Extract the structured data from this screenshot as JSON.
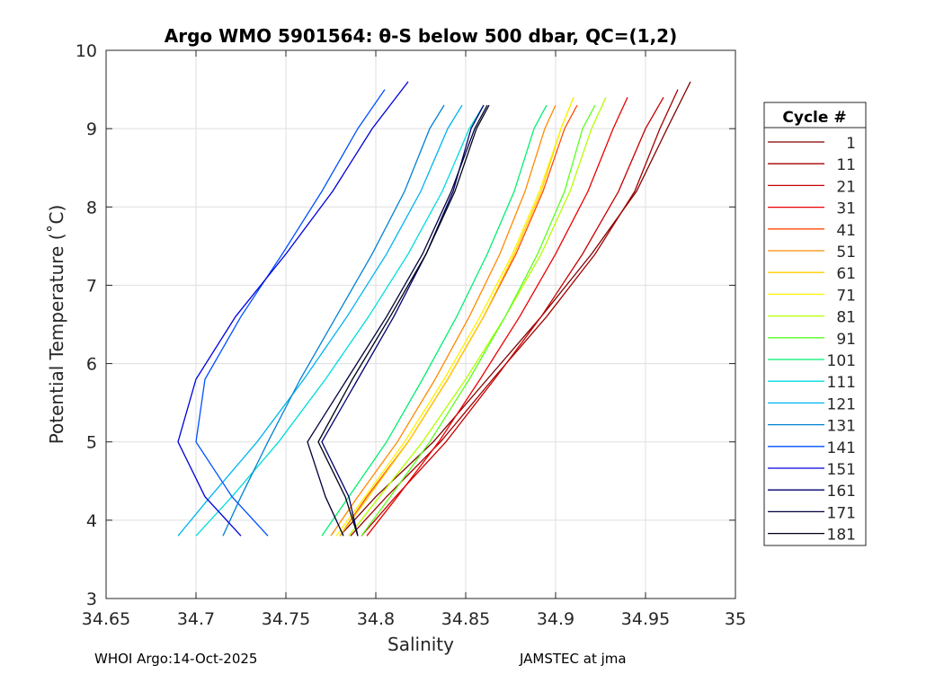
{
  "chart_data": {
    "type": "line",
    "title": "Argo WMO 5901564: θ-S below 500 dbar,  QC=(1,2)",
    "xlabel": "Salinity",
    "ylabel": "Potential Temperature (˚C)",
    "xlim": [
      34.65,
      35.0
    ],
    "ylim": [
      3,
      10
    ],
    "xticks": [
      34.65,
      34.7,
      34.75,
      34.8,
      34.85,
      34.9,
      34.95,
      35.0
    ],
    "xtick_labels": [
      "34.65",
      "34.7",
      "34.75",
      "34.8",
      "34.85",
      "34.9",
      "34.95",
      "35"
    ],
    "yticks": [
      3,
      4,
      5,
      6,
      7,
      8,
      9,
      10
    ],
    "ytick_labels": [
      "3",
      "4",
      "5",
      "6",
      "7",
      "8",
      "9",
      "10"
    ],
    "grid": true,
    "legend": {
      "title": "Cycle #",
      "placement": "outside-right",
      "entries": [
        "1",
        "11",
        "21",
        "31",
        "41",
        "51",
        "61",
        "71",
        "81",
        "91",
        "101",
        "111",
        "121",
        "131",
        "141",
        "151",
        "161",
        "171",
        "181"
      ]
    },
    "series": [
      {
        "name": "1",
        "color": "#800000",
        "S": [
          34.78,
          34.8,
          34.832,
          34.862,
          34.892,
          34.92,
          34.945,
          34.962,
          34.975
        ],
        "T": [
          3.8,
          4.3,
          5.0,
          5.8,
          6.6,
          7.4,
          8.2,
          9.0,
          9.6
        ]
      },
      {
        "name": "11",
        "color": "#A40000",
        "S": [
          34.786,
          34.806,
          34.836,
          34.865,
          34.895,
          34.922,
          34.944,
          34.958,
          34.968
        ],
        "T": [
          3.8,
          4.3,
          5.0,
          5.8,
          6.6,
          7.4,
          8.2,
          9.0,
          9.5
        ]
      },
      {
        "name": "21",
        "color": "#C80000",
        "S": [
          34.792,
          34.811,
          34.839,
          34.866,
          34.892,
          34.915,
          34.935,
          34.95,
          34.96
        ],
        "T": [
          3.8,
          4.3,
          5.0,
          5.8,
          6.6,
          7.4,
          8.2,
          9.0,
          9.4
        ]
      },
      {
        "name": "31",
        "color": "#EC0000",
        "S": [
          34.795,
          34.812,
          34.835,
          34.858,
          34.88,
          34.9,
          34.918,
          34.932,
          34.94
        ],
        "T": [
          3.8,
          4.3,
          5.0,
          5.8,
          6.6,
          7.4,
          8.2,
          9.0,
          9.4
        ]
      },
      {
        "name": "41",
        "color": "#FF4B00",
        "S": [
          34.78,
          34.795,
          34.818,
          34.84,
          34.86,
          34.878,
          34.893,
          34.905,
          34.912
        ],
        "T": [
          3.8,
          4.3,
          5.0,
          5.8,
          6.6,
          7.4,
          8.2,
          9.0,
          9.3
        ]
      },
      {
        "name": "51",
        "color": "#FF8A00",
        "S": [
          34.775,
          34.79,
          34.812,
          34.833,
          34.852,
          34.869,
          34.883,
          34.894,
          34.9
        ],
        "T": [
          3.8,
          4.3,
          5.0,
          5.8,
          6.6,
          7.4,
          8.2,
          9.0,
          9.3
        ]
      },
      {
        "name": "61",
        "color": "#FFCC00",
        "S": [
          34.78,
          34.796,
          34.818,
          34.84,
          34.86,
          34.877,
          34.892,
          34.903,
          34.91
        ],
        "T": [
          3.8,
          4.3,
          5.0,
          5.8,
          6.6,
          7.4,
          8.2,
          9.0,
          9.4
        ]
      },
      {
        "name": "71",
        "color": "#FFF200",
        "S": [
          34.778,
          34.794,
          34.816,
          34.838,
          34.858,
          34.876,
          34.891,
          34.903,
          34.91
        ],
        "T": [
          3.8,
          4.3,
          5.0,
          5.8,
          6.6,
          7.4,
          8.2,
          9.0,
          9.4
        ]
      },
      {
        "name": "81",
        "color": "#B4FF00",
        "S": [
          34.785,
          34.802,
          34.826,
          34.85,
          34.872,
          34.892,
          34.908,
          34.92,
          34.928
        ],
        "T": [
          3.8,
          4.3,
          5.0,
          5.8,
          6.6,
          7.4,
          8.2,
          9.0,
          9.4
        ]
      },
      {
        "name": "91",
        "color": "#5AFF1E",
        "S": [
          34.792,
          34.808,
          34.83,
          34.852,
          34.872,
          34.89,
          34.905,
          34.915,
          34.922
        ],
        "T": [
          3.8,
          4.3,
          5.0,
          5.8,
          6.6,
          7.4,
          8.2,
          9.0,
          9.3
        ]
      },
      {
        "name": "101",
        "color": "#00F070",
        "S": [
          34.77,
          34.785,
          34.806,
          34.826,
          34.845,
          34.862,
          34.877,
          34.888,
          34.895
        ],
        "T": [
          3.8,
          4.3,
          5.0,
          5.8,
          6.6,
          7.4,
          8.2,
          9.0,
          9.3
        ]
      },
      {
        "name": "111",
        "color": "#00DCDC",
        "S": [
          34.7,
          34.72,
          34.746,
          34.772,
          34.796,
          34.818,
          34.837,
          34.852,
          34.86
        ],
        "T": [
          3.8,
          4.3,
          5.0,
          5.8,
          6.6,
          7.4,
          8.2,
          9.0,
          9.3
        ]
      },
      {
        "name": "121",
        "color": "#00B4F0",
        "S": [
          34.69,
          34.708,
          34.734,
          34.76,
          34.784,
          34.806,
          34.825,
          34.84,
          34.848
        ],
        "T": [
          3.8,
          4.3,
          5.0,
          5.8,
          6.6,
          7.4,
          8.2,
          9.0,
          9.3
        ]
      },
      {
        "name": "131",
        "color": "#0082D2",
        "S": [
          34.715,
          34.725,
          34.74,
          34.758,
          34.778,
          34.798,
          34.816,
          34.83,
          34.838
        ],
        "T": [
          3.8,
          4.3,
          5.0,
          5.8,
          6.6,
          7.4,
          8.2,
          9.0,
          9.3
        ]
      },
      {
        "name": "141",
        "color": "#0050FF",
        "S": [
          34.74,
          34.72,
          34.7,
          34.705,
          34.725,
          34.748,
          34.77,
          34.79,
          34.805
        ],
        "T": [
          3.8,
          4.3,
          5.0,
          5.8,
          6.6,
          7.4,
          8.2,
          9.0,
          9.5
        ]
      },
      {
        "name": "151",
        "color": "#0000DC",
        "S": [
          34.725,
          34.705,
          34.69,
          34.7,
          34.722,
          34.75,
          34.776,
          34.798,
          34.818
        ],
        "T": [
          3.8,
          4.3,
          5.0,
          5.8,
          6.6,
          7.4,
          8.2,
          9.0,
          9.6
        ]
      },
      {
        "name": "161",
        "color": "#00006E",
        "S": [
          34.79,
          34.785,
          34.77,
          34.79,
          34.81,
          34.828,
          34.843,
          34.853,
          34.86
        ],
        "T": [
          3.8,
          4.3,
          5.0,
          5.8,
          6.6,
          7.4,
          8.2,
          9.0,
          9.3
        ]
      },
      {
        "name": "171",
        "color": "#00003C",
        "S": [
          34.782,
          34.772,
          34.762,
          34.784,
          34.806,
          34.826,
          34.842,
          34.855,
          34.862
        ],
        "T": [
          3.8,
          4.3,
          5.0,
          5.8,
          6.6,
          7.4,
          8.2,
          9.0,
          9.3
        ]
      },
      {
        "name": "181",
        "color": "#000014",
        "S": [
          34.79,
          34.783,
          34.768,
          34.787,
          34.808,
          34.828,
          34.844,
          34.856,
          34.863
        ],
        "T": [
          3.8,
          4.3,
          5.0,
          5.8,
          6.6,
          7.4,
          8.2,
          9.0,
          9.3
        ]
      }
    ]
  },
  "footer": {
    "left": "WHOI Argo:14-Oct-2025",
    "right": "JAMSTEC at jma"
  }
}
